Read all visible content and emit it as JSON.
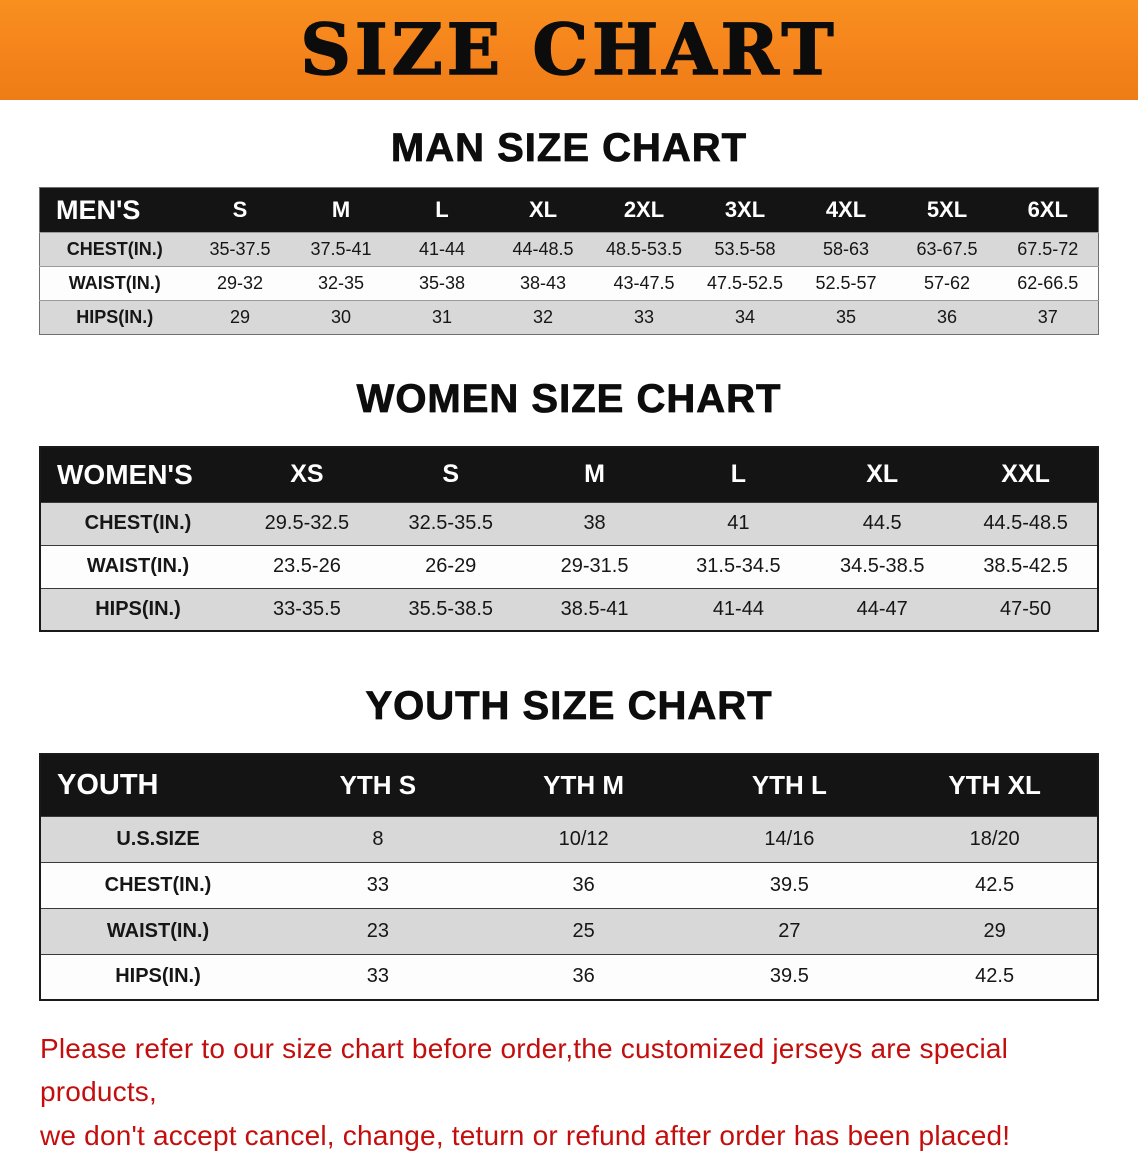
{
  "banner": {
    "title": "SIZE CHART"
  },
  "men": {
    "heading": "MAN SIZE CHART",
    "table": {
      "header": [
        "MEN'S",
        "S",
        "M",
        "L",
        "XL",
        "2XL",
        "3XL",
        "4XL",
        "5XL",
        "6XL"
      ],
      "rows": [
        [
          "CHEST(IN.)",
          "35-37.5",
          "37.5-41",
          "41-44",
          "44-48.5",
          "48.5-53.5",
          "53.5-58",
          "58-63",
          "63-67.5",
          "67.5-72"
        ],
        [
          "WAIST(IN.)",
          "29-32",
          "32-35",
          "35-38",
          "38-43",
          "43-47.5",
          "47.5-52.5",
          "52.5-57",
          "57-62",
          "62-66.5"
        ],
        [
          "HIPS(IN.)",
          "29",
          "30",
          "31",
          "32",
          "33",
          "34",
          "35",
          "36",
          "37"
        ]
      ]
    }
  },
  "women": {
    "heading": "WOMEN SIZE CHART",
    "table": {
      "header": [
        "WOMEN'S",
        "XS",
        "S",
        "M",
        "L",
        "XL",
        "XXL"
      ],
      "rows": [
        [
          "CHEST(IN.)",
          "29.5-32.5",
          "32.5-35.5",
          "38",
          "41",
          "44.5",
          "44.5-48.5"
        ],
        [
          "WAIST(IN.)",
          "23.5-26",
          "26-29",
          "29-31.5",
          "31.5-34.5",
          "34.5-38.5",
          "38.5-42.5"
        ],
        [
          "HIPS(IN.)",
          "33-35.5",
          "35.5-38.5",
          "38.5-41",
          "41-44",
          "44-47",
          "47-50"
        ]
      ]
    }
  },
  "youth": {
    "heading": "YOUTH SIZE CHART",
    "table": {
      "header": [
        "YOUTH",
        "YTH S",
        "YTH M",
        "YTH L",
        "YTH XL"
      ],
      "rows": [
        [
          "U.S.SIZE",
          "8",
          "10/12",
          "14/16",
          "18/20"
        ],
        [
          "CHEST(IN.)",
          "33",
          "36",
          "39.5",
          "42.5"
        ],
        [
          "WAIST(IN.)",
          "23",
          "25",
          "27",
          "29"
        ],
        [
          "HIPS(IN.)",
          "33",
          "36",
          "39.5",
          "42.5"
        ]
      ]
    }
  },
  "disclaimer": {
    "line1": "Please refer to our size chart before order,the customized jerseys are special products,",
    "line2": "we don't accept cancel, change, teturn or refund after order has been placed!"
  },
  "colors": {
    "banner_bg": "#f5831c",
    "table_header_bg": "#141414",
    "row_stripe": "#d8d8d8",
    "disclaimer_text": "#c40e0e"
  }
}
